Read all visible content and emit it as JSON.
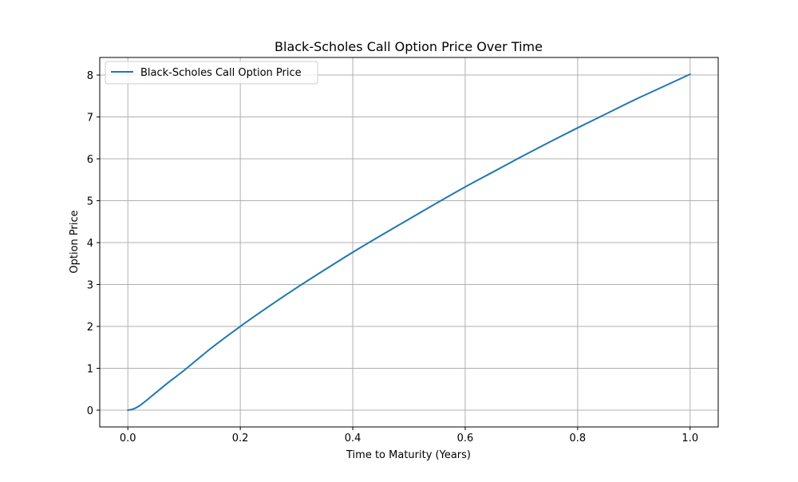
{
  "chart_data": {
    "type": "line",
    "title": "Black-Scholes Call Option Price Over Time",
    "xlabel": "Time to Maturity (Years)",
    "ylabel": "Option Price",
    "xlim": [
      -0.05,
      1.05
    ],
    "ylim": [
      -0.4,
      8.42
    ],
    "xticks": [
      0.0,
      0.2,
      0.4,
      0.6,
      0.8,
      1.0
    ],
    "xtick_labels": [
      "0.0",
      "0.2",
      "0.4",
      "0.6",
      "0.8",
      "1.0"
    ],
    "yticks": [
      0,
      1,
      2,
      3,
      4,
      5,
      6,
      7,
      8
    ],
    "ytick_labels": [
      "0",
      "1",
      "2",
      "3",
      "4",
      "5",
      "6",
      "7",
      "8"
    ],
    "grid": true,
    "legend": {
      "placement": "top-left",
      "entries": [
        "Black-Scholes Call Option Price"
      ]
    },
    "colors": {
      "line": "#1f77b4",
      "grid": "#b0b0b0",
      "axes": "#000000"
    },
    "series": [
      {
        "name": "Black-Scholes Call Option Price",
        "x": [
          0.0,
          0.01,
          0.02,
          0.03,
          0.04,
          0.05,
          0.07,
          0.1,
          0.15,
          0.2,
          0.25,
          0.3,
          0.35,
          0.4,
          0.45,
          0.5,
          0.55,
          0.6,
          0.65,
          0.7,
          0.75,
          0.8,
          0.85,
          0.9,
          0.95,
          1.0
        ],
        "y": [
          0.0,
          0.03,
          0.1,
          0.2,
          0.31,
          0.42,
          0.64,
          0.95,
          1.5,
          2.0,
          2.47,
          2.92,
          3.35,
          3.77,
          4.17,
          4.56,
          4.95,
          5.33,
          5.69,
          6.05,
          6.4,
          6.74,
          7.07,
          7.4,
          7.71,
          8.02
        ]
      }
    ]
  }
}
